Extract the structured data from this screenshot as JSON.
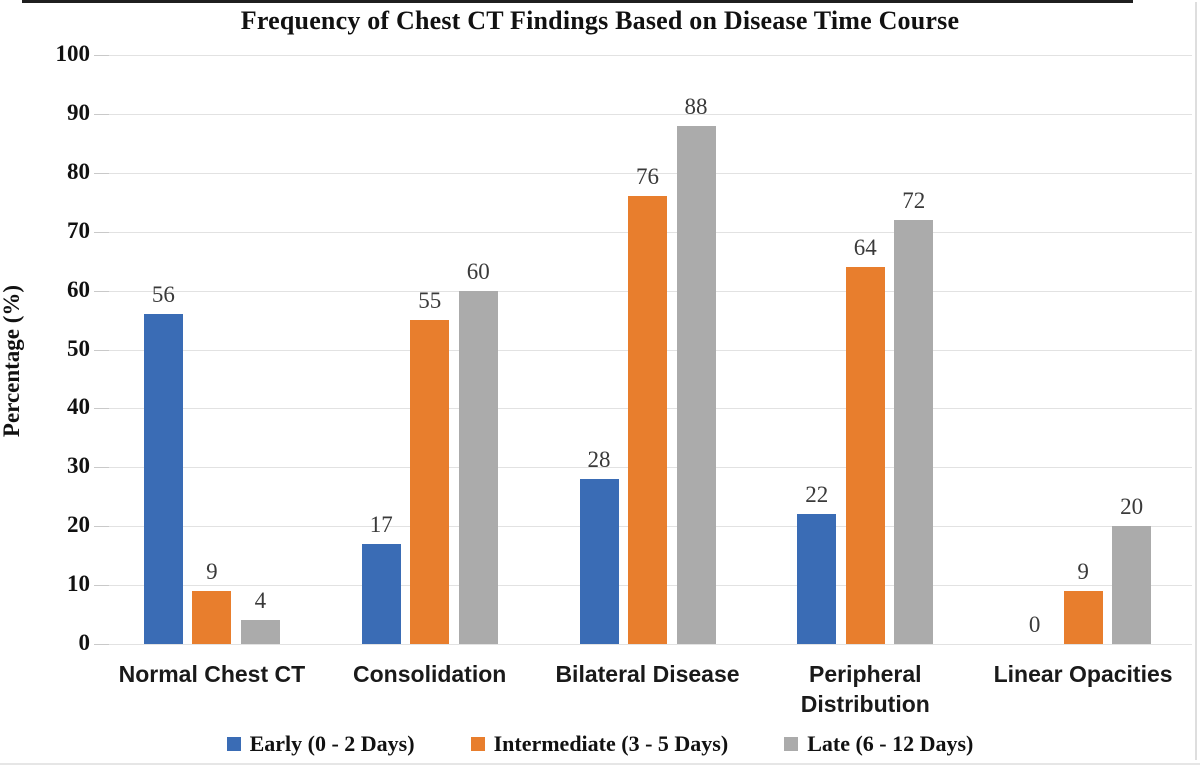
{
  "chart_data": {
    "type": "bar",
    "title": "Frequency of Chest CT Findings Based on Disease Time Course",
    "ylabel": "Percentage (%)",
    "ylim": [
      0,
      100
    ],
    "ytick_step": 10,
    "grid": true,
    "legend_position": "bottom",
    "value_labels": true,
    "categories": [
      "Normal Chest CT",
      "Consolidation",
      "Bilateral Disease",
      "Peripheral Distribution",
      "Linear Opacities"
    ],
    "series": [
      {
        "name": "Early (0 - 2 Days)",
        "color": "#3A6CB5",
        "values": [
          56,
          17,
          28,
          22,
          0
        ]
      },
      {
        "name": "Intermediate (3 - 5 Days)",
        "color": "#E87E2D",
        "values": [
          9,
          55,
          76,
          64,
          9
        ]
      },
      {
        "name": "Late (6 - 12 Days)",
        "color": "#ABABAB",
        "values": [
          4,
          60,
          88,
          72,
          20
        ]
      }
    ]
  }
}
